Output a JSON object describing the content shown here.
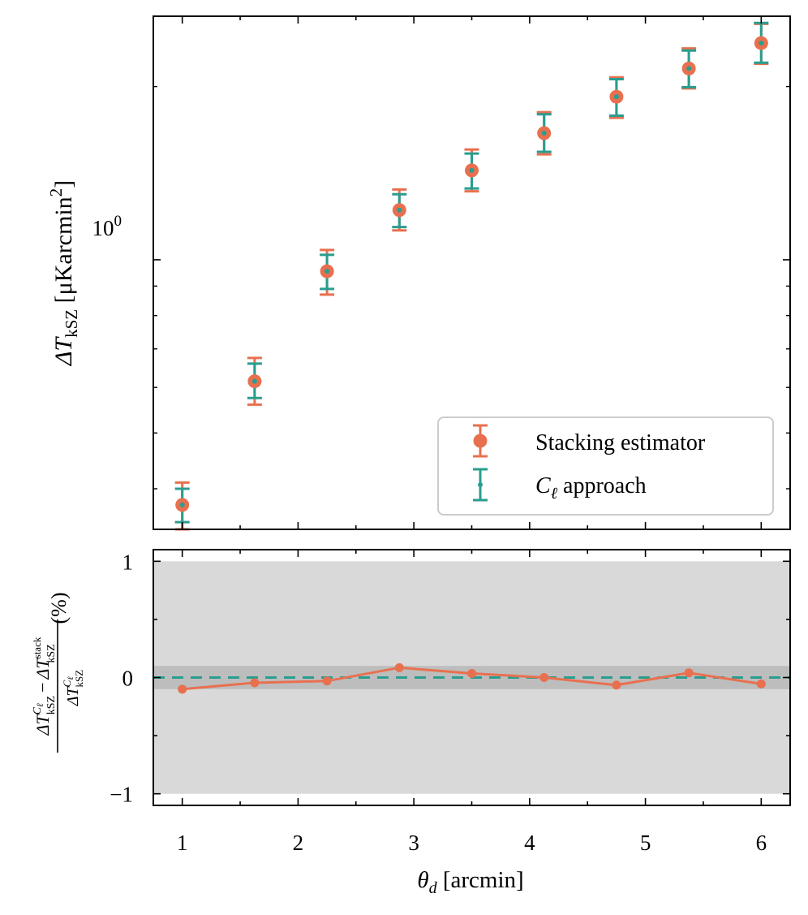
{
  "chart_data": [
    {
      "type": "scatter",
      "panel": "top",
      "yscale": "log",
      "ylim": [
        0.34,
        2.65
      ],
      "xlim": [
        0.75,
        6.25
      ],
      "ylabel_parts": [
        "ΔT",
        "kSZ",
        " [μK",
        "arcmin",
        "2",
        "]"
      ],
      "ytick_label": {
        "base": "10",
        "exp": "0"
      },
      "x": [
        1.0,
        1.625,
        2.25,
        2.875,
        3.5,
        4.125,
        4.75,
        5.375,
        6.0
      ],
      "series": [
        {
          "name": "Stacking estimator",
          "color": "#e8704f",
          "values": [
            0.375,
            0.615,
            0.955,
            1.22,
            1.43,
            1.66,
            1.92,
            2.15,
            2.38
          ],
          "yerr_low": [
            0.34,
            0.56,
            0.87,
            1.125,
            1.315,
            1.525,
            1.765,
            1.985,
            2.19
          ],
          "yerr_high": [
            0.41,
            0.675,
            1.04,
            1.325,
            1.555,
            1.805,
            2.075,
            2.33,
            2.57
          ]
        },
        {
          "name": "C",
          "name_sub": "ℓ",
          "name_rest": " approach",
          "color": "#2a9d8f",
          "values": [
            0.375,
            0.615,
            0.955,
            1.22,
            1.43,
            1.66,
            1.92,
            2.15,
            2.38
          ],
          "yerr_low": [
            0.35,
            0.575,
            0.89,
            1.14,
            1.33,
            1.54,
            1.78,
            1.995,
            2.2
          ],
          "yerr_high": [
            0.4,
            0.66,
            1.02,
            1.3,
            1.53,
            1.79,
            2.06,
            2.31,
            2.58
          ]
        }
      ],
      "legend_location": "lower-right"
    },
    {
      "type": "line",
      "panel": "bottom",
      "ylim": [
        -1.1,
        1.1
      ],
      "yticks": [
        1,
        0,
        -1
      ],
      "ytick_labels": [
        "1",
        "0",
        "−1"
      ],
      "xlim": [
        0.75,
        6.25
      ],
      "xticks": [
        1,
        2,
        3,
        4,
        5,
        6
      ],
      "xtick_labels": [
        "1",
        "2",
        "3",
        "4",
        "5",
        "6"
      ],
      "xlabel_parts": [
        "θ",
        "d",
        " [arcmin]"
      ],
      "ylabel_parts": {
        "num_a": "ΔT",
        "num_a_sup": "C",
        "num_a_supsub": "ℓ",
        "num_a_sub": "kSZ",
        "minus": "−",
        "num_b": "ΔT",
        "num_b_sup": "stack",
        "num_b_sub": "kSZ",
        "den": "ΔT",
        "den_sup": "C",
        "den_supsub": "ℓ",
        "den_sub": "kSZ",
        "unit": "(%)"
      },
      "band_outer": [
        -1,
        1
      ],
      "band_inner": [
        -0.1,
        0.1
      ],
      "reference_line": 0,
      "reference_color": "#2a9d8f",
      "series": [
        {
          "name": "ratio",
          "color": "#e8704f",
          "x": [
            1.0,
            1.625,
            2.25,
            2.875,
            3.5,
            4.125,
            4.75,
            5.375,
            6.0
          ],
          "values": [
            -0.1,
            -0.045,
            -0.03,
            0.085,
            0.035,
            0.0,
            -0.065,
            0.04,
            -0.055
          ]
        }
      ]
    }
  ]
}
